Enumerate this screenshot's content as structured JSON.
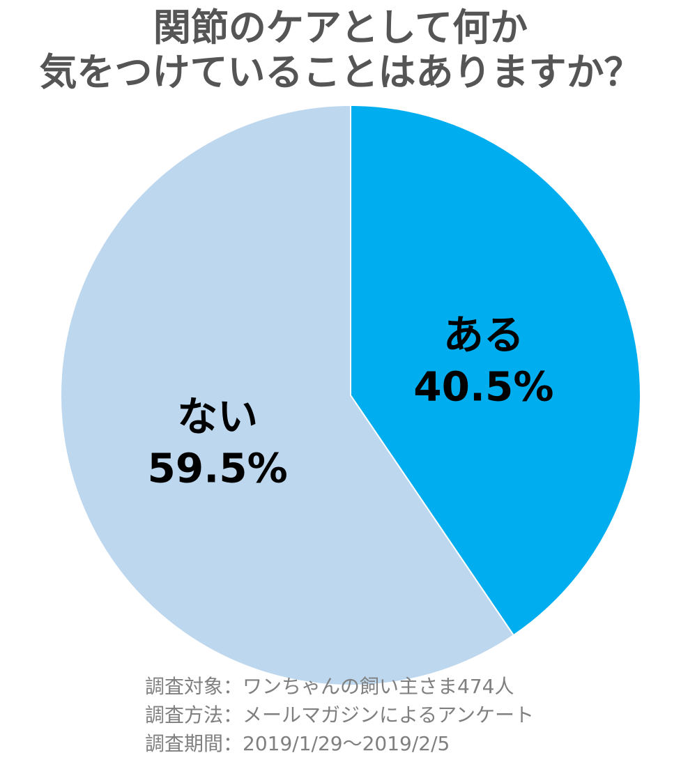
{
  "title": {
    "line1": "関節のケアとして何か",
    "line2": "気をつけていることはありますか？"
  },
  "chart_data": {
    "type": "pie",
    "slices": [
      {
        "label": "ある",
        "value": 40.5,
        "value_label": "40.5%",
        "color": "#00AEEF"
      },
      {
        "label": "ない",
        "value": 59.5,
        "value_label": "59.5%",
        "color": "#BDD7EE"
      }
    ],
    "start": "12 o'clock",
    "direction": "clockwise"
  },
  "notes": {
    "target": "調査対象：ワンちゃんの飼い主さま474人",
    "method": "調査方法：メールマガジンによるアンケート",
    "period": "調査期間：2019/1/29～2019/2/5"
  }
}
